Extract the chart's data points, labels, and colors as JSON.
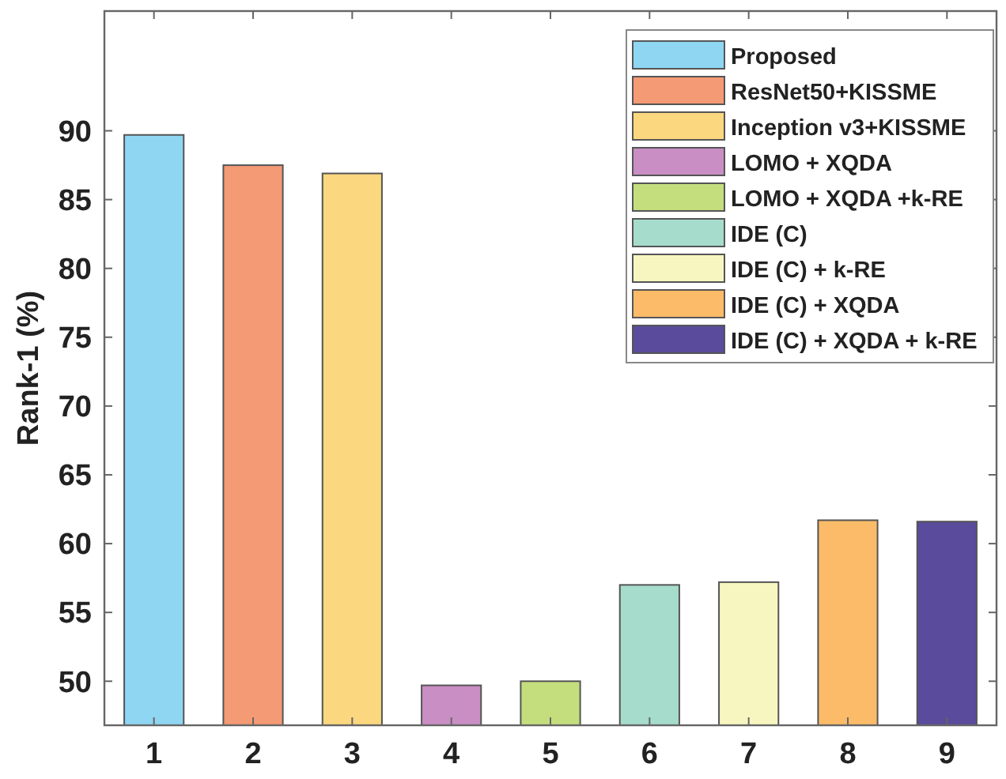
{
  "chart_data": {
    "type": "bar",
    "ylabel": "Rank-1 (%)",
    "categories": [
      "1",
      "2",
      "3",
      "4",
      "5",
      "6",
      "7",
      "8",
      "9"
    ],
    "ylim": [
      46.8,
      98.7
    ],
    "yticks": [
      50,
      55,
      60,
      65,
      70,
      75,
      80,
      85,
      90
    ],
    "legend": "top right",
    "series": [
      {
        "name": "Proposed",
        "color": "#8fd6f3",
        "values": [
          89.7,
          null,
          null,
          null,
          null,
          null,
          null,
          null,
          null
        ]
      },
      {
        "name": "ResNet50+KISSME",
        "color": "#f49a74",
        "values": [
          null,
          87.5,
          null,
          null,
          null,
          null,
          null,
          null,
          null
        ]
      },
      {
        "name": "Inception v3+KISSME",
        "color": "#fbd77f",
        "values": [
          null,
          null,
          86.9,
          null,
          null,
          null,
          null,
          null,
          null
        ]
      },
      {
        "name": "LOMO + XQDA",
        "color": "#c98ec4",
        "values": [
          null,
          null,
          null,
          49.7,
          null,
          null,
          null,
          null,
          null
        ]
      },
      {
        "name": "LOMO + XQDA +k-RE",
        "color": "#c4de7e",
        "values": [
          null,
          null,
          null,
          null,
          50.0,
          null,
          null,
          null,
          null
        ]
      },
      {
        "name": "IDE (C)",
        "color": "#a6dccc",
        "values": [
          null,
          null,
          null,
          null,
          null,
          57.0,
          null,
          null,
          null
        ]
      },
      {
        "name": "IDE (C) + k-RE",
        "color": "#f8f6c0",
        "values": [
          null,
          null,
          null,
          null,
          null,
          null,
          57.2,
          null,
          null
        ]
      },
      {
        "name": "IDE (C) + XQDA",
        "color": "#fbbb68",
        "values": [
          null,
          null,
          null,
          null,
          null,
          null,
          null,
          61.7,
          null
        ]
      },
      {
        "name": "IDE (C) + XQDA + k-RE",
        "color": "#5a4b9c",
        "values": [
          null,
          null,
          null,
          null,
          null,
          null,
          null,
          null,
          61.6
        ]
      }
    ]
  }
}
